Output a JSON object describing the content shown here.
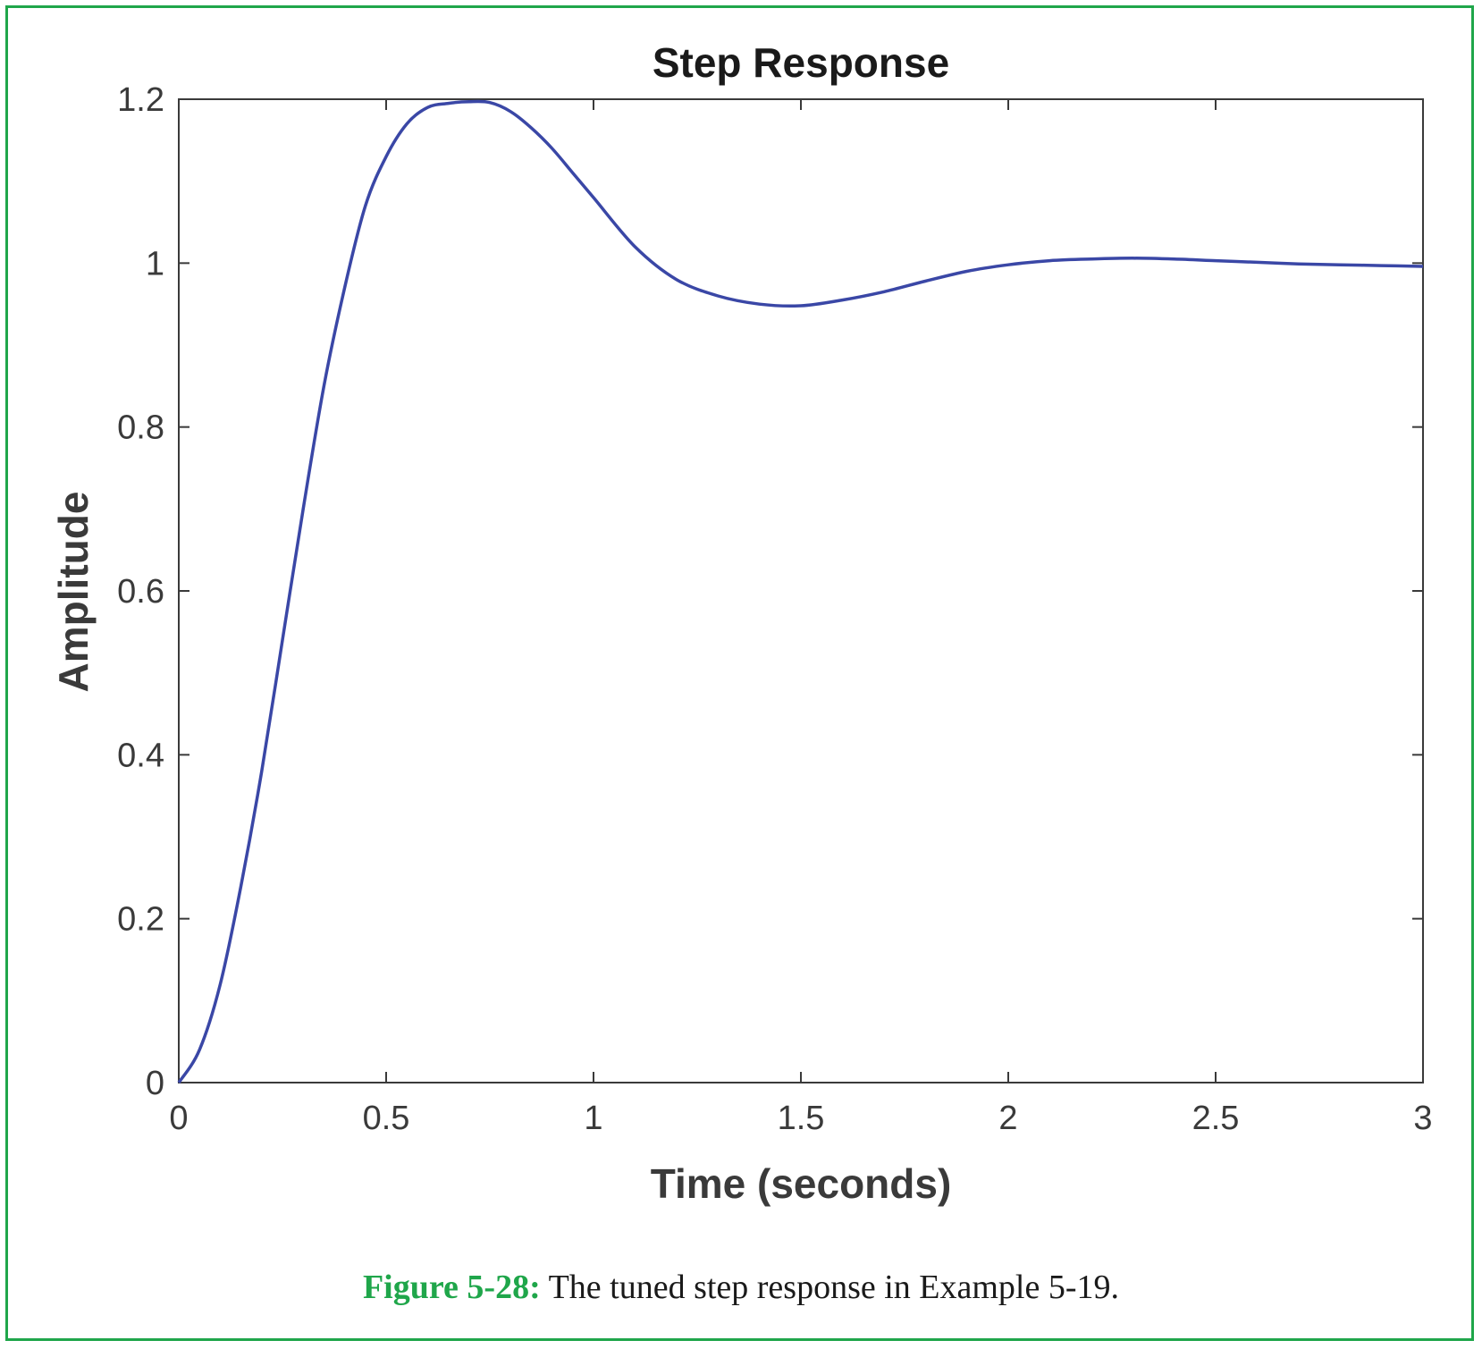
{
  "colors": {
    "frame": "#1fa64a",
    "line": "#3a47a6",
    "axes": "#3a3a3a",
    "caption_label": "#1fa64a"
  },
  "caption": {
    "label": "Figure 5-28:",
    "text": "The tuned step response in Example 5-19."
  },
  "chart_data": {
    "type": "line",
    "title": "Step Response",
    "xlabel": "Time (seconds)",
    "ylabel": "Amplitude",
    "xlim": [
      0,
      3
    ],
    "ylim": [
      0,
      1.2
    ],
    "xticks": [
      0,
      0.5,
      1,
      1.5,
      2,
      2.5,
      3
    ],
    "xtick_labels": [
      "0",
      "0.5",
      "1",
      "1.5",
      "2",
      "2.5",
      "3"
    ],
    "yticks": [
      0,
      0.2,
      0.4,
      0.6,
      0.8,
      1,
      1.2
    ],
    "ytick_labels": [
      "0",
      "0.2",
      "0.4",
      "0.6",
      "0.8",
      "1",
      "1.2"
    ],
    "grid": false,
    "series": [
      {
        "x": [
          0,
          0.05,
          0.1,
          0.15,
          0.2,
          0.25,
          0.3,
          0.35,
          0.4,
          0.45,
          0.5,
          0.55,
          0.6,
          0.65,
          0.7,
          0.75,
          0.8,
          0.85,
          0.9,
          0.95,
          1.0,
          1.1,
          1.2,
          1.3,
          1.4,
          1.5,
          1.6,
          1.7,
          1.8,
          1.9,
          2.0,
          2.1,
          2.2,
          2.3,
          2.4,
          2.5,
          2.6,
          2.7,
          2.8,
          2.9,
          3.0
        ],
        "y": [
          0,
          0.04,
          0.12,
          0.24,
          0.38,
          0.54,
          0.7,
          0.85,
          0.97,
          1.07,
          1.13,
          1.17,
          1.19,
          1.195,
          1.197,
          1.196,
          1.185,
          1.165,
          1.14,
          1.11,
          1.08,
          1.02,
          0.98,
          0.96,
          0.95,
          0.948,
          0.955,
          0.965,
          0.978,
          0.99,
          0.998,
          1.003,
          1.005,
          1.006,
          1.005,
          1.003,
          1.001,
          0.999,
          0.998,
          0.997,
          0.996
        ]
      }
    ]
  }
}
